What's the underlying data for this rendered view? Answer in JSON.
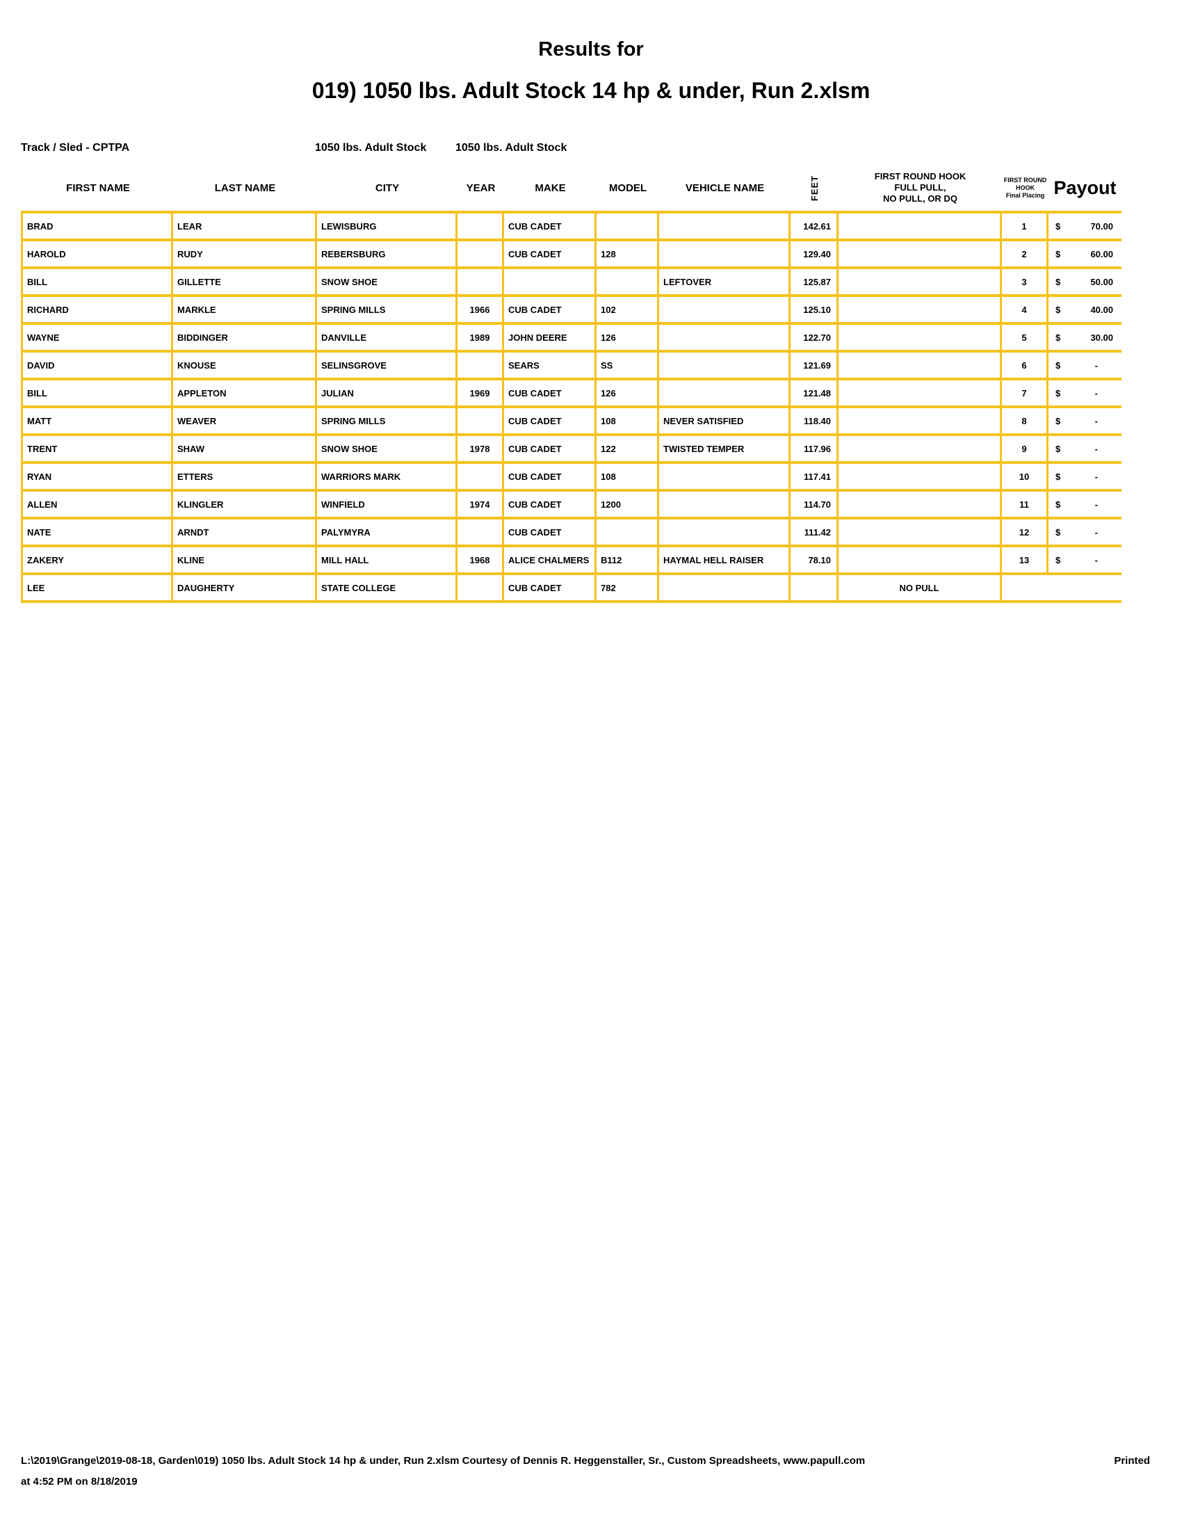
{
  "colors": {
    "grid": "#F5C21E"
  },
  "title": {
    "line1": "Results for",
    "line2": "019) 1050 lbs. Adult Stock 14 hp & under, Run 2.xlsm"
  },
  "meta": {
    "track_sled": "Track / Sled - CPTPA",
    "class_label_left": "1050 lbs. Adult Stock",
    "class_label_right": "1050 lbs. Adult Stock"
  },
  "table": {
    "headers": {
      "first_name": "FIRST NAME",
      "last_name": "LAST NAME",
      "city": "CITY",
      "year": "YEAR",
      "make": "MAKE",
      "model": "MODEL",
      "vehicle_name": "VEHICLE NAME",
      "feet": "FEET",
      "hook_line1": "FIRST ROUND HOOK",
      "hook_line2": "FULL PULL,",
      "hook_line3": "NO PULL, OR DQ",
      "placing_line1": "FIRST ROUND",
      "placing_line2": "HOOK",
      "placing_line3": "Final Placing",
      "payout": "Payout"
    },
    "rows": [
      {
        "first_name": "BRAD",
        "last_name": "LEAR",
        "city": "LEWISBURG",
        "year": "",
        "make": "CUB CADET",
        "model": "",
        "vehicle_name": "",
        "feet": "142.61",
        "hook": "",
        "placing": "1",
        "payout_symbol": "$",
        "payout": "70.00"
      },
      {
        "first_name": "HAROLD",
        "last_name": "RUDY",
        "city": "REBERSBURG",
        "year": "",
        "make": "CUB CADET",
        "model": "128",
        "vehicle_name": "",
        "feet": "129.40",
        "hook": "",
        "placing": "2",
        "payout_symbol": "$",
        "payout": "60.00"
      },
      {
        "first_name": "BILL",
        "last_name": "GILLETTE",
        "city": "SNOW SHOE",
        "year": "",
        "make": "",
        "model": "",
        "vehicle_name": "LEFTOVER",
        "feet": "125.87",
        "hook": "",
        "placing": "3",
        "payout_symbol": "$",
        "payout": "50.00"
      },
      {
        "first_name": "RICHARD",
        "last_name": "MARKLE",
        "city": "SPRING MILLS",
        "year": "1966",
        "make": "CUB CADET",
        "model": "102",
        "vehicle_name": "",
        "feet": "125.10",
        "hook": "",
        "placing": "4",
        "payout_symbol": "$",
        "payout": "40.00"
      },
      {
        "first_name": "WAYNE",
        "last_name": "BIDDINGER",
        "city": "DANVILLE",
        "year": "1989",
        "make": "JOHN DEERE",
        "model": "126",
        "vehicle_name": "",
        "feet": "122.70",
        "hook": "",
        "placing": "5",
        "payout_symbol": "$",
        "payout": "30.00"
      },
      {
        "first_name": "DAVID",
        "last_name": "KNOUSE",
        "city": "SELINSGROVE",
        "year": "",
        "make": "SEARS",
        "model": "SS",
        "vehicle_name": "",
        "feet": "121.69",
        "hook": "",
        "placing": "6",
        "payout_symbol": "$",
        "payout": "-"
      },
      {
        "first_name": "BILL",
        "last_name": "APPLETON",
        "city": "JULIAN",
        "year": "1969",
        "make": "CUB CADET",
        "model": "126",
        "vehicle_name": "",
        "feet": "121.48",
        "hook": "",
        "placing": "7",
        "payout_symbol": "$",
        "payout": "-"
      },
      {
        "first_name": "MATT",
        "last_name": "WEAVER",
        "city": "SPRING MILLS",
        "year": "",
        "make": "CUB CADET",
        "model": "108",
        "vehicle_name": "NEVER SATISFIED",
        "feet": "118.40",
        "hook": "",
        "placing": "8",
        "payout_symbol": "$",
        "payout": "-"
      },
      {
        "first_name": "TRENT",
        "last_name": "SHAW",
        "city": "SNOW SHOE",
        "year": "1978",
        "make": "CUB CADET",
        "model": "122",
        "vehicle_name": "TWISTED TEMPER",
        "feet": "117.96",
        "hook": "",
        "placing": "9",
        "payout_symbol": "$",
        "payout": "-"
      },
      {
        "first_name": "RYAN",
        "last_name": "ETTERS",
        "city": "WARRIORS MARK",
        "year": "",
        "make": "CUB CADET",
        "model": "108",
        "vehicle_name": "",
        "feet": "117.41",
        "hook": "",
        "placing": "10",
        "payout_symbol": "$",
        "payout": "-"
      },
      {
        "first_name": "ALLEN",
        "last_name": "KLINGLER",
        "city": "WINFIELD",
        "year": "1974",
        "make": "CUB CADET",
        "model": "1200",
        "vehicle_name": "",
        "feet": "114.70",
        "hook": "",
        "placing": "11",
        "payout_symbol": "$",
        "payout": "-"
      },
      {
        "first_name": "NATE",
        "last_name": "ARNDT",
        "city": "PALYMYRA",
        "year": "",
        "make": "CUB CADET",
        "model": "",
        "vehicle_name": "",
        "feet": "111.42",
        "hook": "",
        "placing": "12",
        "payout_symbol": "$",
        "payout": "-"
      },
      {
        "first_name": "ZAKERY",
        "last_name": "KLINE",
        "city": "MILL HALL",
        "year": "1968",
        "make": "ALICE CHALMERS",
        "model": "B112",
        "vehicle_name": "HAYMAL HELL RAISER",
        "feet": "78.10",
        "hook": "",
        "placing": "13",
        "payout_symbol": "$",
        "payout": "-"
      },
      {
        "first_name": "LEE",
        "last_name": "DAUGHERTY",
        "city": "STATE COLLEGE",
        "year": "",
        "make": "CUB CADET",
        "model": "782",
        "vehicle_name": "",
        "feet": "",
        "hook": "NO PULL",
        "placing": "",
        "payout_symbol": "",
        "payout": ""
      }
    ]
  },
  "footer": {
    "line1": "L:\\2019\\Grange\\2019-08-18, Garden\\019) 1050 lbs. Adult Stock 14 hp & under, Run 2.xlsm  Courtesy of Dennis R. Heggenstaller, Sr., Custom Spreadsheets, www.papull.com",
    "printed": "Printed",
    "line2": "at 4:52 PM on 8/18/2019"
  }
}
